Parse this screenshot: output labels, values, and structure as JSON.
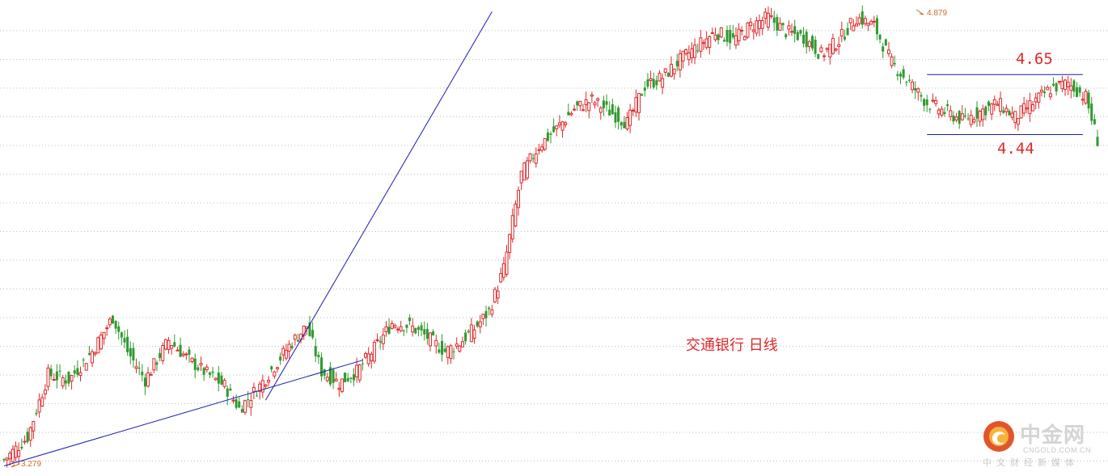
{
  "chart_data": {
    "type": "candlestick",
    "title": "交通银行 日线",
    "price_range": [
      3.27,
      4.88
    ],
    "grid": "horizontal-dotted",
    "colors": {
      "up": "#e0282a",
      "down": "#2e9a2e",
      "trendline": "#1a1ab4",
      "annotation": "#e0282a"
    },
    "extremes": {
      "high_label": "4.879",
      "low_label": "3.279"
    },
    "resistance": {
      "label": "4.65",
      "value": 4.65
    },
    "support": {
      "label": "4.44",
      "value": 4.44
    },
    "trendlines": [
      {
        "name": "long-term-support",
        "start": [
          0,
          3.28
        ],
        "end": [
          122,
          3.65
        ]
      },
      {
        "name": "steep-support",
        "start": [
          89,
          3.51
        ],
        "end": [
          166,
          4.87
        ]
      }
    ],
    "close_path": [
      [
        0,
        3.3
      ],
      [
        8,
        3.38
      ],
      [
        15,
        3.6
      ],
      [
        22,
        3.58
      ],
      [
        30,
        3.68
      ],
      [
        37,
        3.8
      ],
      [
        42,
        3.68
      ],
      [
        48,
        3.58
      ],
      [
        56,
        3.72
      ],
      [
        63,
        3.65
      ],
      [
        68,
        3.61
      ],
      [
        75,
        3.56
      ],
      [
        80,
        3.48
      ],
      [
        87,
        3.56
      ],
      [
        92,
        3.63
      ],
      [
        97,
        3.7
      ],
      [
        103,
        3.77
      ],
      [
        108,
        3.61
      ],
      [
        114,
        3.57
      ],
      [
        120,
        3.61
      ],
      [
        126,
        3.69
      ],
      [
        132,
        3.78
      ],
      [
        138,
        3.77
      ],
      [
        144,
        3.73
      ],
      [
        150,
        3.68
      ],
      [
        155,
        3.71
      ],
      [
        160,
        3.76
      ],
      [
        165,
        3.82
      ],
      [
        170,
        3.97
      ],
      [
        176,
        4.3
      ],
      [
        182,
        4.4
      ],
      [
        188,
        4.46
      ],
      [
        194,
        4.53
      ],
      [
        200,
        4.56
      ],
      [
        206,
        4.52
      ],
      [
        212,
        4.48
      ],
      [
        218,
        4.61
      ],
      [
        224,
        4.64
      ],
      [
        230,
        4.7
      ],
      [
        236,
        4.75
      ],
      [
        242,
        4.8
      ],
      [
        248,
        4.77
      ],
      [
        254,
        4.82
      ],
      [
        260,
        4.85
      ],
      [
        266,
        4.8
      ],
      [
        272,
        4.78
      ],
      [
        278,
        4.72
      ],
      [
        284,
        4.77
      ],
      [
        290,
        4.85
      ],
      [
        296,
        4.82
      ],
      [
        302,
        4.69
      ],
      [
        308,
        4.62
      ],
      [
        314,
        4.55
      ],
      [
        320,
        4.52
      ],
      [
        326,
        4.49
      ],
      [
        332,
        4.52
      ],
      [
        338,
        4.55
      ],
      [
        344,
        4.5
      ],
      [
        350,
        4.55
      ],
      [
        356,
        4.6
      ],
      [
        362,
        4.62
      ],
      [
        368,
        4.57
      ],
      [
        372,
        4.42
      ]
    ]
  },
  "logo": {
    "name_cn": "中金网",
    "domain": "CNGOLD.COM.CN",
    "tagline": "中文财经新媒体"
  }
}
